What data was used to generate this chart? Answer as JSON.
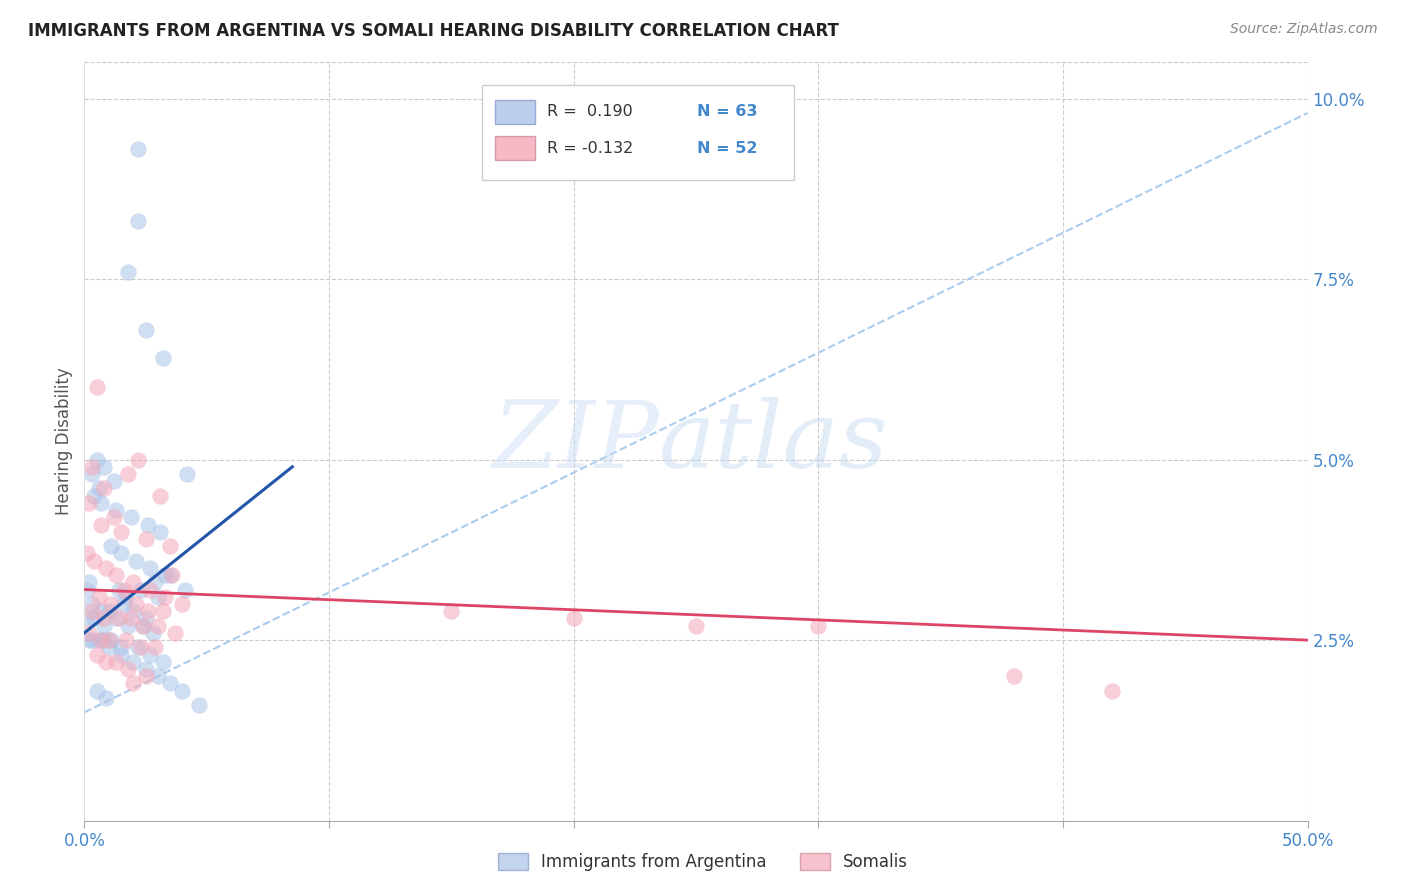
{
  "title": "IMMIGRANTS FROM ARGENTINA VS SOMALI HEARING DISABILITY CORRELATION CHART",
  "source": "Source: ZipAtlas.com",
  "ylabel_label": "Hearing Disability",
  "xlim": [
    0.0,
    0.5
  ],
  "ylim": [
    0.0,
    0.105
  ],
  "xticks": [
    0.0,
    0.1,
    0.2,
    0.3,
    0.4,
    0.5
  ],
  "xtick_labels": [
    "0.0%",
    "",
    "",
    "",
    "",
    "50.0%"
  ],
  "yticks": [
    0.025,
    0.05,
    0.075,
    0.1
  ],
  "ytick_labels": [
    "2.5%",
    "5.0%",
    "7.5%",
    "10.0%"
  ],
  "background_color": "#ffffff",
  "grid_color": "#cccccc",
  "watermark_zip": "ZIP",
  "watermark_atlas": "atlas",
  "legend_R1": "R =  0.190",
  "legend_N1": "N = 63",
  "legend_R2": "R = -0.132",
  "legend_N2": "N = 52",
  "blue_color": "#aac4e8",
  "pink_color": "#f4a8b8",
  "blue_line_color": "#2255aa",
  "pink_line_color": "#dd4466",
  "dashed_line_color": "#aaccee",
  "title_color": "#222222",
  "axis_tick_color": "#4488cc",
  "blue_scatter_x": [
    0.022,
    0.022,
    0.018,
    0.025,
    0.032,
    0.005,
    0.008,
    0.003,
    0.012,
    0.006,
    0.004,
    0.007,
    0.013,
    0.019,
    0.026,
    0.031,
    0.042,
    0.011,
    0.015,
    0.021,
    0.027,
    0.033,
    0.002,
    0.001,
    0.014,
    0.017,
    0.023,
    0.029,
    0.035,
    0.041,
    0.003,
    0.007,
    0.01,
    0.016,
    0.02,
    0.025,
    0.03,
    0.001,
    0.004,
    0.008,
    0.013,
    0.018,
    0.024,
    0.028,
    0.002,
    0.006,
    0.011,
    0.015,
    0.022,
    0.027,
    0.032,
    0.005,
    0.009,
    0.047,
    0.003,
    0.008,
    0.01,
    0.015,
    0.02,
    0.025,
    0.03,
    0.035,
    0.04
  ],
  "blue_scatter_y": [
    0.093,
    0.083,
    0.076,
    0.068,
    0.064,
    0.05,
    0.049,
    0.048,
    0.047,
    0.046,
    0.045,
    0.044,
    0.043,
    0.042,
    0.041,
    0.04,
    0.048,
    0.038,
    0.037,
    0.036,
    0.035,
    0.034,
    0.033,
    0.032,
    0.032,
    0.031,
    0.032,
    0.033,
    0.034,
    0.032,
    0.03,
    0.029,
    0.029,
    0.03,
    0.029,
    0.028,
    0.031,
    0.028,
    0.028,
    0.027,
    0.028,
    0.027,
    0.027,
    0.026,
    0.025,
    0.025,
    0.025,
    0.024,
    0.024,
    0.023,
    0.022,
    0.018,
    0.017,
    0.016,
    0.025,
    0.025,
    0.024,
    0.023,
    0.022,
    0.021,
    0.02,
    0.019,
    0.018
  ],
  "pink_scatter_x": [
    0.005,
    0.003,
    0.018,
    0.022,
    0.008,
    0.031,
    0.002,
    0.012,
    0.007,
    0.015,
    0.025,
    0.035,
    0.001,
    0.004,
    0.009,
    0.013,
    0.02,
    0.027,
    0.033,
    0.04,
    0.006,
    0.011,
    0.016,
    0.021,
    0.026,
    0.032,
    0.003,
    0.008,
    0.014,
    0.019,
    0.024,
    0.03,
    0.037,
    0.002,
    0.007,
    0.01,
    0.017,
    0.023,
    0.029,
    0.036,
    0.005,
    0.009,
    0.013,
    0.018,
    0.025,
    0.02,
    0.38,
    0.42,
    0.3,
    0.15,
    0.2,
    0.25
  ],
  "pink_scatter_y": [
    0.06,
    0.049,
    0.048,
    0.05,
    0.046,
    0.045,
    0.044,
    0.042,
    0.041,
    0.04,
    0.039,
    0.038,
    0.037,
    0.036,
    0.035,
    0.034,
    0.033,
    0.032,
    0.031,
    0.03,
    0.031,
    0.03,
    0.032,
    0.03,
    0.029,
    0.029,
    0.029,
    0.028,
    0.028,
    0.028,
    0.027,
    0.027,
    0.026,
    0.026,
    0.025,
    0.025,
    0.025,
    0.024,
    0.024,
    0.034,
    0.023,
    0.022,
    0.022,
    0.021,
    0.02,
    0.019,
    0.02,
    0.018,
    0.027,
    0.029,
    0.028,
    0.027
  ],
  "blue_line_x": [
    0.0,
    0.085
  ],
  "blue_line_y_start": 0.026,
  "blue_line_y_end": 0.049,
  "pink_line_x": [
    0.0,
    0.5
  ],
  "pink_line_y_start": 0.032,
  "pink_line_y_end": 0.025,
  "dashed_line_x": [
    0.0,
    0.5
  ],
  "dashed_line_y_start": 0.015,
  "dashed_line_y_end": 0.098
}
